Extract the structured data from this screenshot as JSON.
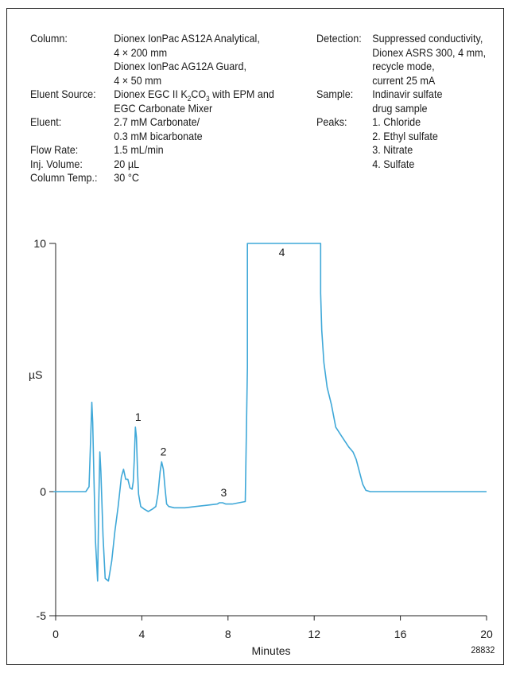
{
  "conditions_left": [
    {
      "label": "Column:",
      "lines": [
        "Dionex IonPac AS12A Analytical,",
        "4 × 200 mm",
        "Dionex IonPac AG12A Guard,",
        "4 × 50 mm"
      ]
    },
    {
      "label": "Eluent Source:",
      "lines": [
        "Dionex EGC II K2CO3 with EPM and",
        "EGC Carbonate Mixer"
      ]
    },
    {
      "label": "Eluent:",
      "lines": [
        "2.7 mM Carbonate/",
        "0.3 mM bicarbonate"
      ]
    },
    {
      "label": "Flow Rate:",
      "lines": [
        "1.5 mL/min"
      ]
    },
    {
      "label": "Inj. Volume:",
      "lines": [
        "20 µL"
      ]
    },
    {
      "label": "Column Temp.:",
      "lines": [
        "30 °C"
      ]
    }
  ],
  "conditions_right": [
    {
      "label": "Detection:",
      "lines": [
        "Suppressed conductivity,",
        "Dionex ASRS 300, 4 mm,",
        "recycle mode,",
        "current 25 mA"
      ]
    },
    {
      "label": "Sample:",
      "lines": [
        "Indinavir sulfate",
        "drug sample"
      ]
    },
    {
      "label": "Peaks:",
      "lines": [
        "1. Chloride",
        "2. Ethyl sulfate",
        "3. Nitrate",
        "4. Sulfate"
      ]
    }
  ],
  "figure_code": "28832",
  "chart_data": {
    "type": "line",
    "xlabel": "Minutes",
    "ylabel": "µS",
    "xlim": [
      0,
      20
    ],
    "ylim": [
      -5,
      10
    ],
    "x_ticks": [
      0,
      4,
      8,
      12,
      16,
      20
    ],
    "y_ticks": [
      -5,
      0,
      10
    ],
    "grid": false,
    "line_color": "#3fa8d8",
    "series": [
      {
        "x": [
          -0.1,
          0.8,
          1.4,
          1.55,
          1.62,
          1.68,
          1.72,
          1.78,
          1.85,
          1.95,
          2.0,
          2.05,
          2.1,
          2.2,
          2.3,
          2.45,
          2.6,
          2.75,
          2.9,
          3.05,
          3.15,
          3.25,
          3.35,
          3.45,
          3.55,
          3.6,
          3.65,
          3.7,
          3.75,
          3.8,
          3.85,
          3.95,
          4.1,
          4.3,
          4.5,
          4.65,
          4.75,
          4.85,
          4.92,
          5.0,
          5.08,
          5.15,
          5.25,
          5.5,
          6.0,
          6.5,
          7.0,
          7.5,
          7.6,
          7.75,
          7.9,
          8.2,
          8.5,
          8.8,
          8.9,
          8.9,
          12.3,
          12.3,
          12.35,
          12.45,
          12.6,
          12.8,
          13.0,
          13.3,
          13.6,
          13.8,
          13.95,
          14.1,
          14.25,
          14.4,
          14.6,
          15.0,
          16.0,
          18.0,
          20.0
        ],
        "y": [
          0,
          0,
          0,
          0.2,
          2.0,
          3.6,
          2.8,
          0.5,
          -2.0,
          -3.6,
          -0.5,
          1.6,
          0.8,
          -1.8,
          -3.5,
          -3.6,
          -2.8,
          -1.6,
          -0.6,
          0.6,
          0.9,
          0.5,
          0.5,
          0.15,
          0.1,
          0.4,
          1.3,
          2.6,
          2.2,
          0.8,
          -0.1,
          -0.6,
          -0.7,
          -0.8,
          -0.7,
          -0.6,
          -0.1,
          0.8,
          1.2,
          0.9,
          0.1,
          -0.5,
          -0.6,
          -0.65,
          -0.65,
          -0.6,
          -0.55,
          -0.5,
          -0.45,
          -0.45,
          -0.5,
          -0.5,
          -0.45,
          -0.4,
          5.0,
          10.0,
          10.0,
          8.0,
          6.5,
          5.2,
          4.2,
          3.5,
          2.6,
          2.2,
          1.8,
          1.6,
          1.3,
          0.8,
          0.3,
          0.05,
          0,
          0,
          0,
          0,
          0
        ]
      }
    ],
    "peak_labels": [
      {
        "label": "1",
        "x": 3.83,
        "y": 2.6
      },
      {
        "label": "2",
        "x": 5.0,
        "y": 1.2
      },
      {
        "label": "3",
        "x": 7.8,
        "y": -0.45
      },
      {
        "label": "4",
        "x": 10.5,
        "y": 10.0
      }
    ]
  }
}
